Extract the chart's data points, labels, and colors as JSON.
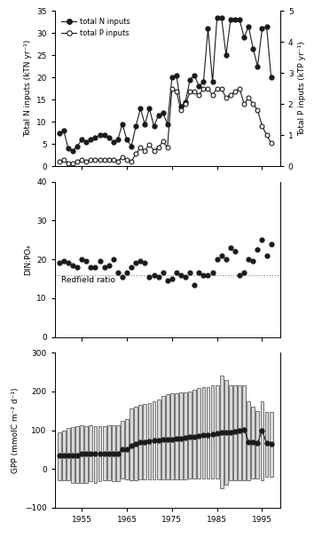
{
  "years_NP": [
    1950,
    1951,
    1952,
    1953,
    1954,
    1955,
    1956,
    1957,
    1958,
    1959,
    1960,
    1961,
    1962,
    1963,
    1964,
    1965,
    1966,
    1967,
    1968,
    1969,
    1970,
    1971,
    1972,
    1973,
    1974,
    1975,
    1976,
    1977,
    1978,
    1979,
    1980,
    1981,
    1982,
    1983,
    1984,
    1985,
    1986,
    1987,
    1988,
    1989,
    1990,
    1991,
    1992,
    1993,
    1994,
    1995,
    1996,
    1997
  ],
  "total_N": [
    7.5,
    8.0,
    4.0,
    3.5,
    4.5,
    6.0,
    5.5,
    6.0,
    6.5,
    7.0,
    7.0,
    6.5,
    5.5,
    6.0,
    9.5,
    6.0,
    4.5,
    9.0,
    13.0,
    9.5,
    13.0,
    9.0,
    11.5,
    12.0,
    9.5,
    20.0,
    20.5,
    13.5,
    14.5,
    19.5,
    20.5,
    18.0,
    19.0,
    31.0,
    19.0,
    33.5,
    33.5,
    25.0,
    33.0,
    33.0,
    33.0,
    29.0,
    31.5,
    26.5,
    22.5,
    31.0,
    31.5,
    20.0
  ],
  "total_P": [
    0.15,
    0.2,
    0.1,
    0.1,
    0.15,
    0.2,
    0.15,
    0.2,
    0.2,
    0.2,
    0.2,
    0.2,
    0.2,
    0.15,
    0.3,
    0.2,
    0.15,
    0.4,
    0.6,
    0.5,
    0.7,
    0.5,
    0.6,
    0.8,
    0.6,
    2.5,
    2.4,
    1.8,
    2.0,
    2.4,
    2.4,
    2.3,
    2.5,
    2.5,
    2.3,
    2.5,
    2.5,
    2.2,
    2.3,
    2.4,
    2.5,
    2.0,
    2.2,
    2.0,
    1.8,
    1.3,
    1.0,
    0.75
  ],
  "years_DIN": [
    1950,
    1951,
    1952,
    1953,
    1954,
    1955,
    1956,
    1957,
    1958,
    1959,
    1960,
    1961,
    1962,
    1963,
    1964,
    1965,
    1966,
    1967,
    1968,
    1969,
    1970,
    1971,
    1972,
    1973,
    1974,
    1975,
    1976,
    1977,
    1978,
    1979,
    1980,
    1981,
    1982,
    1983,
    1984,
    1985,
    1986,
    1987,
    1988,
    1989,
    1990,
    1991,
    1992,
    1993,
    1994,
    1995,
    1996,
    1997
  ],
  "DIN_PO4": [
    19.0,
    19.5,
    19.0,
    18.5,
    18.0,
    20.0,
    19.5,
    18.0,
    18.0,
    19.5,
    18.0,
    18.5,
    20.0,
    16.5,
    15.5,
    16.5,
    18.0,
    19.0,
    19.5,
    19.0,
    15.5,
    16.0,
    15.5,
    16.5,
    14.5,
    15.0,
    16.5,
    16.0,
    15.5,
    16.5,
    13.5,
    16.5,
    16.0,
    16.0,
    16.5,
    20.0,
    21.0,
    20.0,
    23.0,
    22.0,
    16.0,
    16.5,
    20.0,
    19.5,
    22.5,
    25.0,
    21.0,
    24.0
  ],
  "redfield_ratio": 16.0,
  "years_GPP": [
    1950,
    1951,
    1952,
    1953,
    1954,
    1955,
    1956,
    1957,
    1958,
    1959,
    1960,
    1961,
    1962,
    1963,
    1964,
    1965,
    1966,
    1967,
    1968,
    1969,
    1970,
    1971,
    1972,
    1973,
    1974,
    1975,
    1976,
    1977,
    1978,
    1979,
    1980,
    1981,
    1982,
    1983,
    1984,
    1985,
    1986,
    1987,
    1988,
    1989,
    1990,
    1991,
    1992,
    1993,
    1994,
    1995,
    1996,
    1997
  ],
  "GPP_mean": [
    35,
    35,
    35,
    35,
    35,
    40,
    40,
    40,
    40,
    40,
    40,
    40,
    40,
    40,
    50,
    50,
    60,
    65,
    68,
    70,
    72,
    73,
    73,
    75,
    76,
    77,
    78,
    79,
    80,
    82,
    83,
    85,
    87,
    88,
    90,
    92,
    95,
    95,
    95,
    97,
    100,
    102,
    70,
    68,
    67,
    100,
    66,
    65
  ],
  "GPP_upper": [
    95,
    100,
    105,
    108,
    110,
    112,
    110,
    112,
    110,
    110,
    110,
    112,
    112,
    113,
    125,
    128,
    155,
    160,
    165,
    168,
    170,
    175,
    178,
    188,
    192,
    194,
    196,
    198,
    198,
    200,
    205,
    208,
    210,
    212,
    215,
    215,
    240,
    230,
    215,
    215,
    215,
    215,
    175,
    160,
    150,
    175,
    148,
    148
  ],
  "GPP_lower": [
    -30,
    -30,
    -30,
    -35,
    -35,
    -35,
    -35,
    -32,
    -35,
    -32,
    -30,
    -30,
    -32,
    -32,
    -25,
    -28,
    -30,
    -30,
    -28,
    -28,
    -28,
    -26,
    -26,
    -28,
    -28,
    -28,
    -28,
    -28,
    -28,
    -25,
    -25,
    -25,
    -25,
    -25,
    -25,
    -25,
    -50,
    -40,
    -30,
    -30,
    -30,
    -30,
    -30,
    -25,
    -25,
    -30,
    -20,
    -20
  ],
  "NP_ylabel": "Total N inputs (kTN yr⁻¹)",
  "NP_ylabel2": "Total P inputs (kTP yr⁻¹)",
  "DIN_ylabel": "DIN:PO₄",
  "GPP_ylabel": "GPP (mmolC m⁻² d⁻¹)",
  "N_legend": "total N inputs",
  "P_legend": "total P inputs",
  "redfield_label": "Redfield ratio",
  "ylim_NP": [
    0,
    35
  ],
  "ylim_P": [
    0,
    5
  ],
  "ylim_DIN": [
    0,
    40
  ],
  "ylim_GPP": [
    -100,
    300
  ],
  "xlim": [
    1949,
    1999
  ],
  "xticks": [
    1955,
    1965,
    1975,
    1985,
    1995
  ],
  "dot_color": "#1a1a1a",
  "line_color": "#1a1a1a",
  "bar_color": "#d8d8d8",
  "bar_edge_color": "#444444"
}
